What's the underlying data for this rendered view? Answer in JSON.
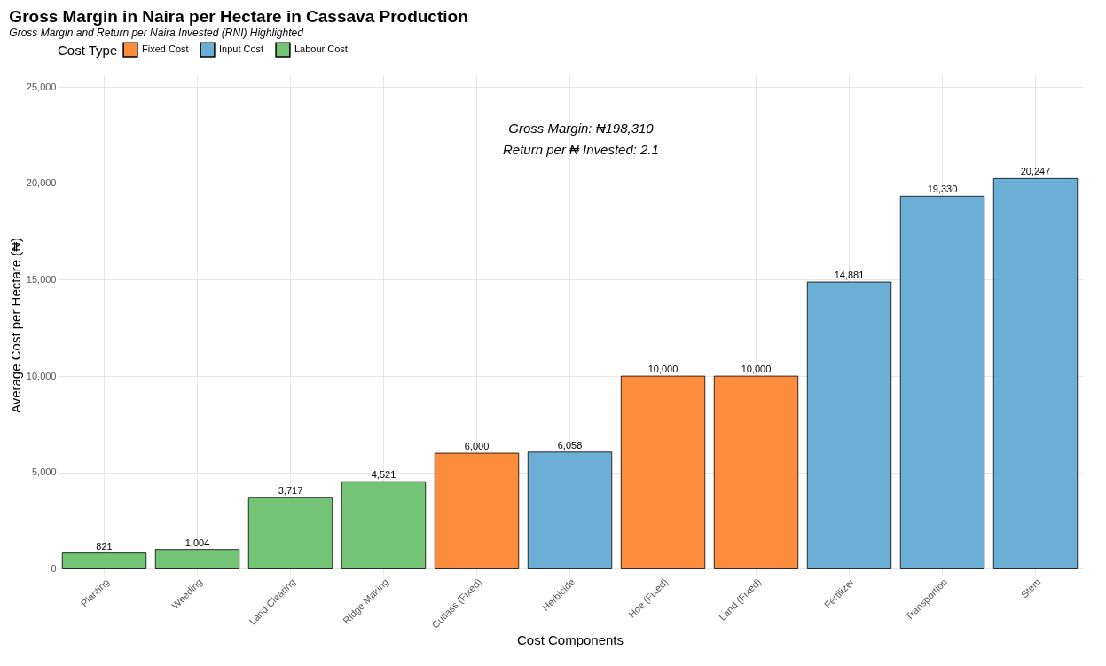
{
  "chart_data": {
    "type": "bar",
    "title": "Gross Margin in Naira per Hectare in Cassava Production",
    "subtitle": "Gross Margin and Return per Naira Invested (RNI) Highlighted",
    "xlabel": "Cost Components",
    "ylabel": "Average Cost per Hectare (₦)",
    "legend_title": "Cost Type",
    "categories": [
      "Planting",
      "Weeding",
      "Land Clearing",
      "Ridge Making",
      "Cutlass (Fixed)",
      "Herbicide",
      "Hoe (Fixed)",
      "Land (Fixed)",
      "Fertilizer",
      "Transportion",
      "Stem"
    ],
    "series": [
      {
        "name": "Fixed Cost",
        "color": "#fd8d3c",
        "values": [
          null,
          null,
          null,
          null,
          6000,
          null,
          10000,
          10000,
          null,
          null,
          null
        ],
        "value_labels": [
          null,
          null,
          null,
          null,
          "6,000",
          null,
          "10,000",
          "10,000",
          null,
          null,
          null
        ]
      },
      {
        "name": "Input Cost",
        "color": "#6baed6",
        "values": [
          null,
          null,
          null,
          null,
          null,
          6058,
          null,
          null,
          14881,
          19330,
          20247
        ],
        "value_labels": [
          null,
          null,
          null,
          null,
          null,
          "6,058",
          null,
          null,
          "14,881",
          "19,330",
          "20,247"
        ]
      },
      {
        "name": "Labour Cost",
        "color": "#74c476",
        "values": [
          821,
          1004,
          3717,
          4521,
          null,
          null,
          null,
          null,
          null,
          null,
          null
        ],
        "value_labels": [
          "821",
          "1,004",
          "3,717",
          "4,521",
          null,
          null,
          null,
          null,
          null,
          null,
          null
        ]
      }
    ],
    "ylim": [
      -300,
      25600
    ],
    "yticks": [
      0,
      {
        "value": 5000,
        "label": "5,000"
      },
      {
        "value": 10000,
        "label": "10,000"
      },
      {
        "value": 15000,
        "label": "15,000"
      },
      {
        "value": 20000,
        "label": "20,000"
      },
      {
        "value": 25000,
        "label": "25,000"
      }
    ],
    "grid": true,
    "legend": "top",
    "annotations": [
      "Gross Margin: ₦198,310",
      "Return per ₦ Invested: 2.1"
    ]
  }
}
